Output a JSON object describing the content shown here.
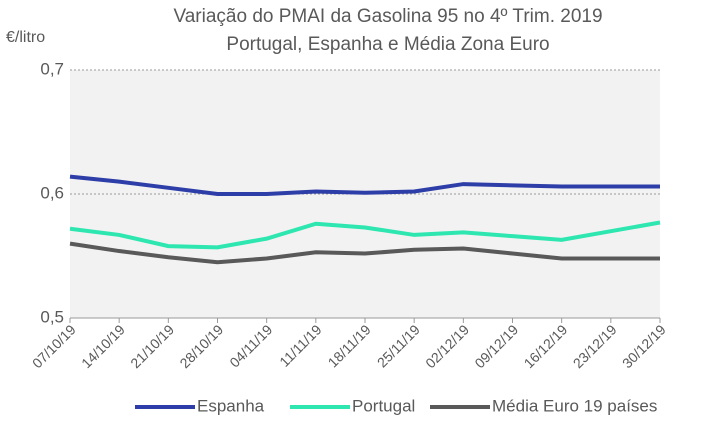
{
  "chart_data": {
    "type": "line",
    "title": "Variação do PMAI da Gasolina 95  no 4º Trim. 2019",
    "subtitle": "Portugal, Espanha e Média Zona Euro",
    "y_label": "€/litro",
    "categories": [
      "07/10/19",
      "14/10/19",
      "21/10/19",
      "28/10/19",
      "04/11/19",
      "11/11/19",
      "18/11/19",
      "25/11/19",
      "02/12/19",
      "09/12/19",
      "16/12/19",
      "23/12/19",
      "30/12/19"
    ],
    "series": [
      {
        "name": "Espanha",
        "color": "#2e3ea8",
        "values": [
          0.614,
          0.61,
          0.605,
          0.6,
          0.6,
          0.602,
          0.601,
          0.602,
          0.608,
          0.607,
          0.606,
          0.606,
          0.606
        ]
      },
      {
        "name": "Portugal",
        "color": "#2ee6b0",
        "values": [
          0.572,
          0.567,
          0.558,
          0.557,
          0.564,
          0.576,
          0.573,
          0.567,
          0.569,
          0.566,
          0.563,
          0.57,
          0.577
        ]
      },
      {
        "name": "Média Euro 19 países",
        "color": "#595959",
        "values": [
          0.56,
          0.554,
          0.549,
          0.545,
          0.548,
          0.553,
          0.552,
          0.555,
          0.556,
          0.552,
          0.548,
          0.548,
          0.548
        ]
      }
    ],
    "ylim": [
      0.5,
      0.7
    ],
    "yticks": [
      {
        "value": 0.5,
        "label": "0,5"
      },
      {
        "value": 0.6,
        "label": "0,6"
      },
      {
        "value": 0.7,
        "label": "0,7"
      }
    ],
    "grid": true,
    "legend": "bottom"
  }
}
